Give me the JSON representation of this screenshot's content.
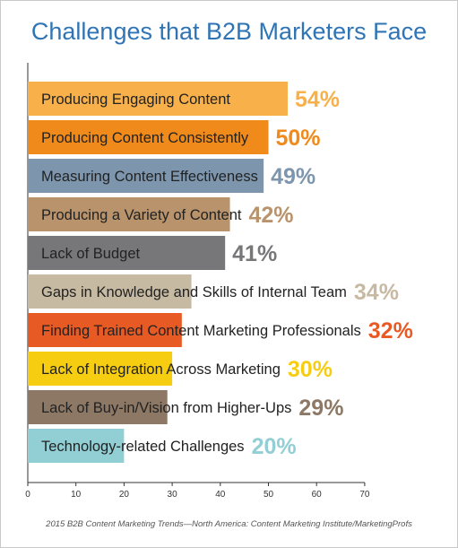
{
  "title": "Challenges that B2B Marketers Face",
  "source": "2015 B2B Content Marketing Trends—North America: Content Marketing Institute/MarketingProfs",
  "chart_data": {
    "type": "bar",
    "orientation": "horizontal",
    "title": "Challenges that B2B Marketers Face",
    "xlim": [
      0,
      70
    ],
    "x_ticks": [
      "0",
      "10",
      "20",
      "30",
      "40",
      "50",
      "60",
      "70"
    ],
    "grid": false,
    "categories": [
      "Producing Engaging Content",
      "Producing Content Consistently",
      "Measuring Content Effectiveness",
      "Producing a Variety of Content",
      "Lack of Budget",
      "Gaps in Knowledge and Skills of Internal Team",
      "Finding Trained Content Marketing Professionals",
      "Lack of Integration Across Marketing",
      "Lack of Buy-in/Vision from Higher-Ups",
      "Technology-related Challenges"
    ],
    "values": [
      54,
      50,
      49,
      42,
      41,
      34,
      32,
      30,
      29,
      20
    ],
    "value_labels": [
      "54%",
      "50%",
      "49%",
      "42%",
      "41%",
      "34%",
      "32%",
      "30%",
      "29%",
      "20%"
    ],
    "colors": [
      "#f7b04a",
      "#ef8a1b",
      "#7d96ad",
      "#b8936b",
      "#77777a",
      "#c7baa2",
      "#e85a24",
      "#f7cd12",
      "#8c7865",
      "#92cfd4"
    ]
  }
}
